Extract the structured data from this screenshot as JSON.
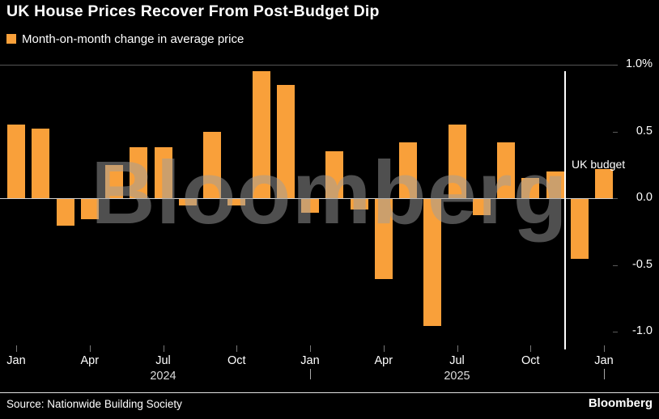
{
  "title": "UK House Prices Recover From Post-Budget Dip",
  "legend": {
    "label": "Month-on-month change in average price",
    "swatch_color": "#F9A03A"
  },
  "chart_data": {
    "type": "bar",
    "title": "UK House Prices Recover From Post-Budget Dip",
    "series_name": "Month-on-month change in average price",
    "unit": "percent",
    "categories": [
      "Jan 2024",
      "Feb 2024",
      "Mar 2024",
      "Apr 2024",
      "May 2024",
      "Jun 2024",
      "Jul 2024",
      "Aug 2024",
      "Sep 2024",
      "Oct 2024",
      "Nov 2024",
      "Dec 2024",
      "Jan 2025",
      "Feb 2025",
      "Mar 2025",
      "Apr 2025",
      "May 2025",
      "Jun 2025",
      "Jul 2025",
      "Aug 2025",
      "Sep 2025",
      "Oct 2025",
      "Nov 2025",
      "Dec 2025",
      "Jan 2026"
    ],
    "values": [
      0.55,
      0.52,
      -0.2,
      -0.15,
      0.25,
      0.38,
      0.38,
      -0.05,
      0.5,
      -0.05,
      0.95,
      0.85,
      -0.1,
      0.35,
      -0.08,
      -0.6,
      0.42,
      -0.95,
      0.55,
      -0.12,
      0.42,
      0.15,
      0.2,
      -0.45,
      0.22
    ],
    "ylim": [
      -1.0,
      1.0
    ],
    "y_tick_values": [
      1.0,
      0.5,
      0.0,
      -0.5,
      -1.0
    ],
    "y_tick_labels": [
      "1.0%",
      "0.5",
      "0.0",
      "-0.5",
      "-1.0"
    ],
    "x_tick_labels": [
      "Jan",
      "Apr",
      "Jul",
      "Oct",
      "Jan",
      "Apr",
      "Jul",
      "Oct",
      "Jan"
    ],
    "x_tick_month_indices": [
      0,
      3,
      6,
      9,
      12,
      15,
      18,
      21,
      24
    ],
    "year_labels": [
      {
        "text": "2024",
        "month_index": 6
      },
      {
        "text": "2025",
        "month_index": 18
      }
    ],
    "year_separator_month_indices": [
      12,
      24
    ],
    "annotation": {
      "text": "UK budget",
      "after_month": "Nov 2025"
    },
    "bar_color": "#F9A03A",
    "grid": "top gridline and zero baseline only",
    "legend_position": "top-left"
  },
  "watermark": "Bloomberg",
  "footer": {
    "source": "Source: Nationwide Building Society",
    "brand": "Bloomberg"
  },
  "colors": {
    "background": "#000000",
    "bar": "#F9A03A",
    "text": "#FFFFFF",
    "budget_line": "#FFFFFF",
    "watermark": "#9E9E9E"
  }
}
